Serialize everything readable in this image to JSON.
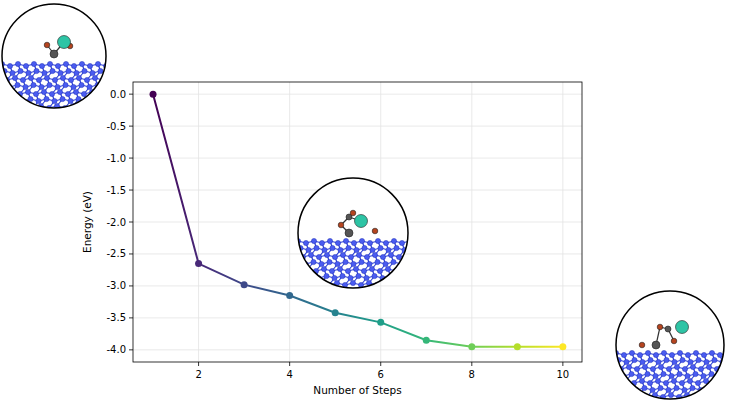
{
  "chart_data": {
    "type": "line",
    "x_label": "Number of Steps",
    "y_label": "Energy (eV)",
    "x": [
      1,
      2,
      3,
      4,
      5,
      6,
      7,
      8,
      9,
      10
    ],
    "values": [
      0.0,
      -2.65,
      -2.98,
      -3.15,
      -3.42,
      -3.57,
      -3.85,
      -3.95,
      -3.95,
      -3.95
    ],
    "colors": [
      "#440154",
      "#482878",
      "#3e4989",
      "#31688e",
      "#26828e",
      "#1f9e89",
      "#35b779",
      "#6ece58",
      "#b5de2b",
      "#fde725"
    ],
    "marker": "circle",
    "line_style": "solid",
    "xlim": [
      0.56,
      10.42
    ],
    "ylim": [
      -4.19,
      0.19
    ],
    "xticks": [
      2,
      4,
      6,
      8,
      10
    ],
    "yticks": [
      {
        "value": 0,
        "label": "0.0"
      },
      -0.5,
      {
        "value": -1,
        "label": "-1.0"
      },
      -1.5,
      {
        "value": -2,
        "label": "-2.0"
      },
      -2.5,
      {
        "value": -3,
        "label": "-3.0"
      },
      -3.5,
      {
        "value": -4,
        "label": "-4.0"
      }
    ],
    "grid": true
  }
}
